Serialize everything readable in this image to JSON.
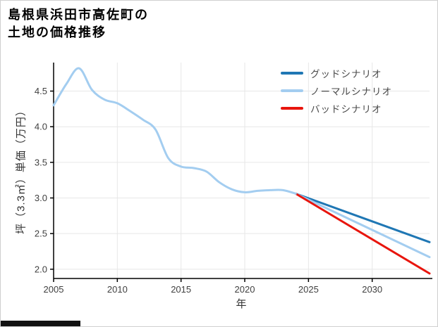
{
  "header": {
    "title_lines": [
      "島根県浜田市高佐町の",
      "土地の価格推移"
    ]
  },
  "chart_data": {
    "type": "line",
    "title": "島根県浜田市高佐町の土地の価格推移",
    "xlabel": "年",
    "ylabel": "坪（3.3㎡）単価（万円）",
    "xlim": [
      2005,
      2034.5
    ],
    "ylim": [
      1.87,
      4.9
    ],
    "x_ticks": [
      2005,
      2010,
      2015,
      2020,
      2025,
      2030
    ],
    "y_ticks": [
      2.0,
      2.5,
      3.0,
      3.5,
      4.0,
      4.5
    ],
    "grid": true,
    "legend_position": "top-right",
    "colors": {
      "good": "#1f77b4",
      "normal": "#a3cdf0",
      "bad": "#e8150d",
      "axis": "#000000",
      "gridline": "#e7e7e7"
    },
    "series": [
      {
        "id": "historical",
        "color": "#a3cdf0",
        "smooth": true,
        "x": [
          2005,
          2006,
          2007,
          2008,
          2009,
          2010,
          2011,
          2012,
          2013,
          2014,
          2015,
          2016,
          2017,
          2018,
          2019,
          2020,
          2021,
          2022,
          2023,
          2024
        ],
        "values": [
          4.3,
          4.6,
          4.82,
          4.52,
          4.38,
          4.33,
          4.22,
          4.1,
          3.96,
          3.56,
          3.44,
          3.42,
          3.37,
          3.22,
          3.12,
          3.08,
          3.1,
          3.11,
          3.11,
          3.06
        ]
      },
      {
        "id": "good-scenario",
        "label": "グッドシナリオ",
        "color": "#1f77b4",
        "smooth": false,
        "x": [
          2024,
          2034.5
        ],
        "values": [
          3.06,
          2.38
        ]
      },
      {
        "id": "normal-scenario",
        "label": "ノーマルシナリオ",
        "color": "#a3cdf0",
        "smooth": false,
        "x": [
          2024,
          2034.5
        ],
        "values": [
          3.06,
          2.17
        ]
      },
      {
        "id": "bad-scenario",
        "label": "バッドシナリオ",
        "color": "#e8150d",
        "smooth": false,
        "x": [
          2024,
          2034.5
        ],
        "values": [
          3.06,
          1.94
        ]
      }
    ]
  }
}
